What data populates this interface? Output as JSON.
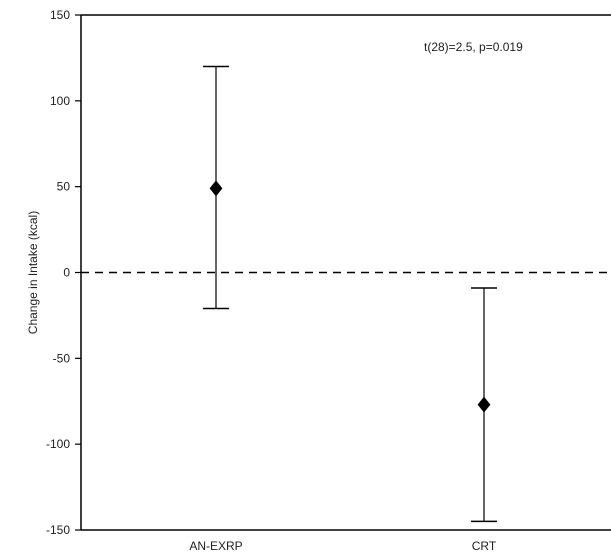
{
  "chart_data": {
    "type": "scatter",
    "title": "",
    "xlabel": "",
    "ylabel": "Change in Intake (kcal)",
    "ylim": [
      -150,
      150
    ],
    "yticks": [
      "150",
      "100",
      "50",
      "0",
      "-50",
      "-100",
      "-150"
    ],
    "categories": [
      "AN-EXRP",
      "CRT"
    ],
    "series": [
      {
        "points": [
          {
            "category": "AN-EXRP",
            "mean": 49,
            "upper": 120,
            "lower": -21
          },
          {
            "category": "CRT",
            "mean": -77,
            "upper": -9,
            "lower": -145
          }
        ]
      }
    ],
    "reference_line": {
      "y": 0,
      "style": "dashed"
    },
    "annotation": "t(28)=2.5, p=0.019",
    "grid": false,
    "legend": "none",
    "marker": "diamond",
    "color": "#000000"
  }
}
